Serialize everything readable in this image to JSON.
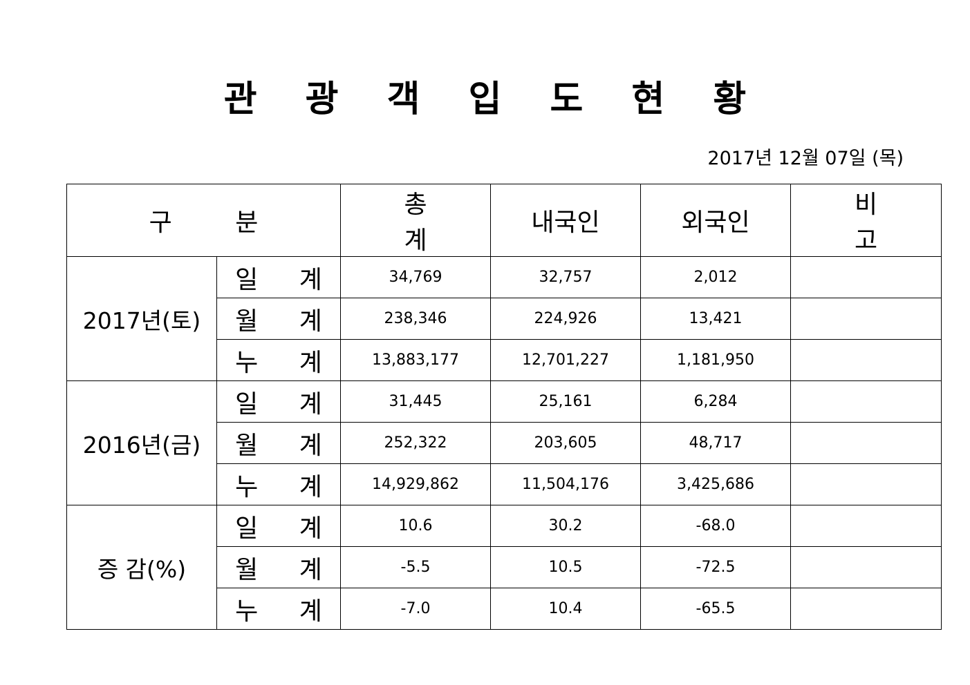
{
  "title": "관 광 객 입 도 현 황",
  "date": "2017년  12월  07일  (목)",
  "table": {
    "headers": [
      "구  분",
      "총  계",
      "내국인",
      "외국인",
      "비  고"
    ],
    "groups": [
      {
        "label": "2017년(토)",
        "rows": [
          {
            "label": "일 계",
            "total": "34,769",
            "domestic": "32,757",
            "foreign": "2,012",
            "note": ""
          },
          {
            "label": "월 계",
            "total": "238,346",
            "domestic": "224,926",
            "foreign": "13,421",
            "note": ""
          },
          {
            "label": "누 계",
            "total": "13,883,177",
            "domestic": "12,701,227",
            "foreign": "1,181,950",
            "note": ""
          }
        ]
      },
      {
        "label": "2016년(금)",
        "rows": [
          {
            "label": "일 계",
            "total": "31,445",
            "domestic": "25,161",
            "foreign": "6,284",
            "note": ""
          },
          {
            "label": "월 계",
            "total": "252,322",
            "domestic": "203,605",
            "foreign": "48,717",
            "note": ""
          },
          {
            "label": "누 계",
            "total": "14,929,862",
            "domestic": "11,504,176",
            "foreign": "3,425,686",
            "note": ""
          }
        ]
      },
      {
        "label": "증 감(%)",
        "rows": [
          {
            "label": "일 계",
            "total": "10.6",
            "domestic": "30.2",
            "foreign": "-68.0",
            "note": ""
          },
          {
            "label": "월 계",
            "total": "-5.5",
            "domestic": "10.5",
            "foreign": "-72.5",
            "note": ""
          },
          {
            "label": "누 계",
            "total": "-7.0",
            "domestic": "10.4",
            "foreign": "-65.5",
            "note": ""
          }
        ]
      }
    ]
  }
}
